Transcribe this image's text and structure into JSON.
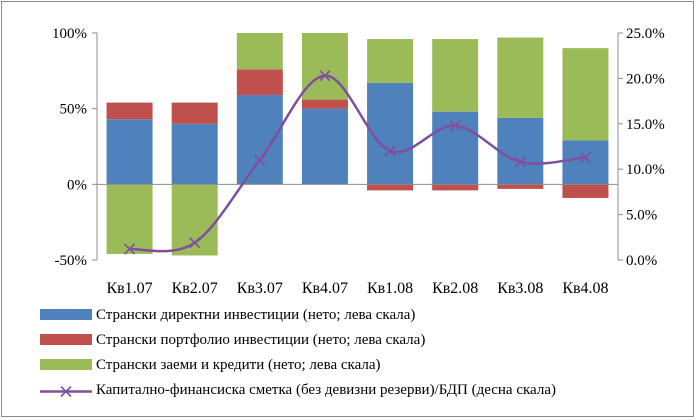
{
  "chart_data": {
    "type": "bar",
    "stacked": true,
    "categories": [
      "Кв1.07",
      "Кв2.07",
      "Кв3.07",
      "Кв4.07",
      "Кв1.08",
      "Кв2.08",
      "Кв3.08",
      "Кв4.08"
    ],
    "series": [
      {
        "name": "Странски директни инвестиции (нето; лева скала)",
        "kind": "bar",
        "axis": "left",
        "color": "#4f81bd",
        "values": [
          43,
          40,
          59,
          50,
          67,
          48,
          44,
          29
        ]
      },
      {
        "name": "Странски портфолио инвестиции (нето; лева скала)",
        "kind": "bar",
        "axis": "left",
        "color": "#c0504d",
        "values": [
          11,
          14,
          17,
          6,
          -4,
          -4,
          -3,
          -9
        ]
      },
      {
        "name": "Странски заеми и кредити (нето; лева скала)",
        "kind": "bar",
        "axis": "left",
        "color": "#9bbb59",
        "values": [
          -46,
          -47,
          24,
          44,
          29,
          48,
          53,
          61
        ]
      },
      {
        "name": "Капитално-финансиска сметка (без девизни резерви)/БДП (десна скала)",
        "kind": "line",
        "axis": "right",
        "color": "#7f4f9f",
        "values": [
          1.2,
          1.9,
          11.0,
          20.3,
          12.0,
          14.8,
          10.8,
          11.3
        ]
      }
    ],
    "y_left": {
      "ylim": [
        -50,
        100
      ],
      "ticks": [
        "-50%",
        "0%",
        "50%",
        "100%"
      ],
      "tick_values": [
        -50,
        0,
        50,
        100
      ]
    },
    "y_right": {
      "ylim": [
        0,
        25
      ],
      "ticks": [
        "0.0%",
        "5.0%",
        "10.0%",
        "15.0%",
        "20.0%",
        "25.0%"
      ],
      "tick_values": [
        0,
        5,
        10,
        15,
        20,
        25
      ]
    },
    "grid": false,
    "legend_position": "bottom"
  }
}
